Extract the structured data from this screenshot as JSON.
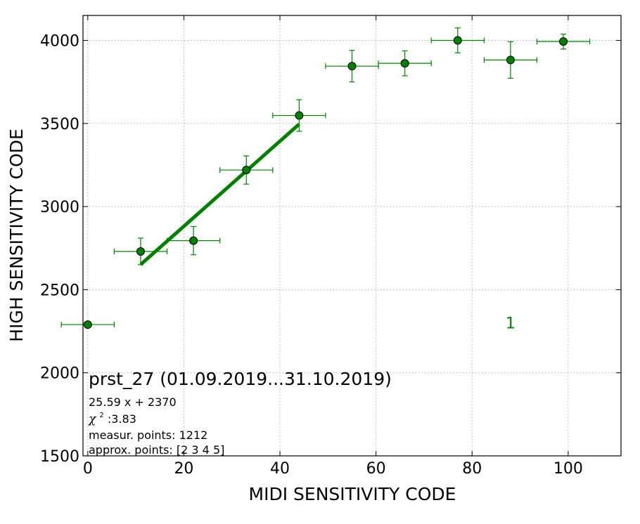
{
  "chart_data": {
    "type": "scatter",
    "title": "",
    "xlabel": "MIDI SENSITIVITY CODE",
    "ylabel": "HIGH SENSITIVITY CODE",
    "xlim": [
      -1,
      111
    ],
    "ylim": [
      1500,
      4150
    ],
    "x_ticks": [
      0,
      20,
      40,
      60,
      80,
      100
    ],
    "y_ticks": [
      1500,
      2000,
      2500,
      3000,
      3500,
      4000
    ],
    "grid": true,
    "series": [
      {
        "color": "#008000",
        "points": [
          {
            "x": 0,
            "y": 2290,
            "xerr": 5.5,
            "yerr": 0
          },
          {
            "x": 11,
            "y": 2730,
            "xerr": 5.5,
            "yerr": 80
          },
          {
            "x": 22,
            "y": 2795,
            "xerr": 5.5,
            "yerr": 85
          },
          {
            "x": 33,
            "y": 3220,
            "xerr": 5.5,
            "yerr": 85
          },
          {
            "x": 44,
            "y": 3548,
            "xerr": 5.5,
            "yerr": 95
          },
          {
            "x": 55,
            "y": 3845,
            "xerr": 5.5,
            "yerr": 95
          },
          {
            "x": 66,
            "y": 3862,
            "xerr": 5.5,
            "yerr": 75
          },
          {
            "x": 77,
            "y": 4000,
            "xerr": 5.5,
            "yerr": 75
          },
          {
            "x": 88,
            "y": 3882,
            "xerr": 5.5,
            "yerr": 110
          },
          {
            "x": 99,
            "y": 3993,
            "xerr": 5.5,
            "yerr": 45
          }
        ]
      }
    ],
    "fit_line": {
      "x": [
        11,
        44
      ],
      "y": [
        2651,
        3496
      ],
      "color": "#008000"
    },
    "annotations": {
      "marker_label": {
        "text": "1",
        "x": 88,
        "y": 2300,
        "color": "#008000"
      },
      "info": {
        "title": "prst_27 (01.09.2019...31.10.2019)",
        "equation": "25.59 x + 2370",
        "chi_symbol": "χ",
        "chi_superscript": "2",
        "chi_value": " :3.83",
        "measur_points": "measur. points: 1212",
        "approx_points": "approx. points: [2 3 4 5]"
      }
    }
  }
}
